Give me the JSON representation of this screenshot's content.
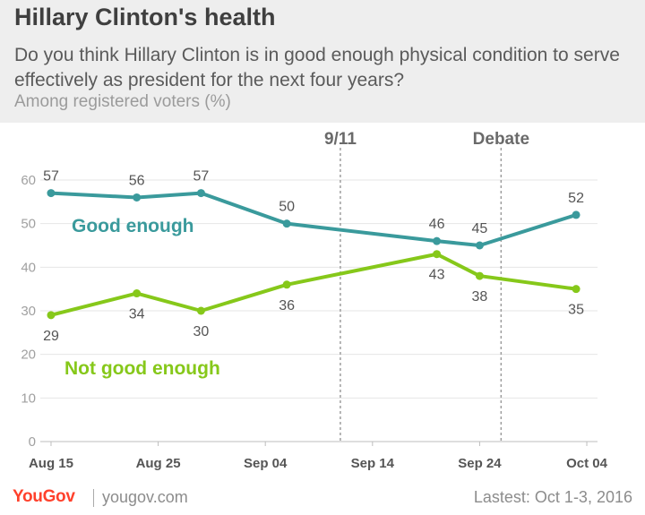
{
  "header": {
    "title": "Hillary Clinton's health",
    "subtitle": "Do you think Hillary Clinton is in good enough physical condition to serve effectively as president for the next four years?",
    "note": "Among registered voters (%)"
  },
  "footer": {
    "brand": "YouGov",
    "site": "yougov.com",
    "date_note": "Lastest: Oct 1-3, 2016"
  },
  "colors": {
    "good": "#3a9a9c",
    "not_good": "#86c81a",
    "grid": "#e6e6e6",
    "tick_text": "#a0a0a0",
    "value_text": "#555555",
    "marker_line": "#9d9d9d",
    "brand": "#ff412c"
  },
  "chart_data": {
    "type": "line",
    "x_dates": [
      "2016-08-15",
      "2016-08-23",
      "2016-08-29",
      "2016-09-06",
      "2016-09-20",
      "2016-09-24",
      "2016-10-03"
    ],
    "x_ticks": [
      "Aug 15",
      "Aug 25",
      "Sep 04",
      "Sep 14",
      "Sep 24",
      "Oct 04"
    ],
    "xlim": [
      "2016-08-14",
      "2016-10-05"
    ],
    "y_ticks": [
      "0",
      "10",
      "20",
      "30",
      "40",
      "50",
      "60"
    ],
    "ylim": [
      0,
      60
    ],
    "grid": "horizontal",
    "series": [
      {
        "name": "Good enough",
        "values": [
          57,
          56,
          57,
          50,
          46,
          45,
          52
        ],
        "labels": [
          "57",
          "56",
          "57",
          "50",
          "46",
          "45",
          "52"
        ]
      },
      {
        "name": "Not good enough",
        "values": [
          29,
          34,
          30,
          36,
          43,
          38,
          35
        ],
        "labels": [
          "29",
          "34",
          "30",
          "36",
          "43",
          "38",
          "35"
        ]
      }
    ],
    "events": [
      {
        "label": "9/11",
        "date": "2016-09-11"
      },
      {
        "label": "Debate",
        "date": "2016-09-26"
      }
    ]
  }
}
